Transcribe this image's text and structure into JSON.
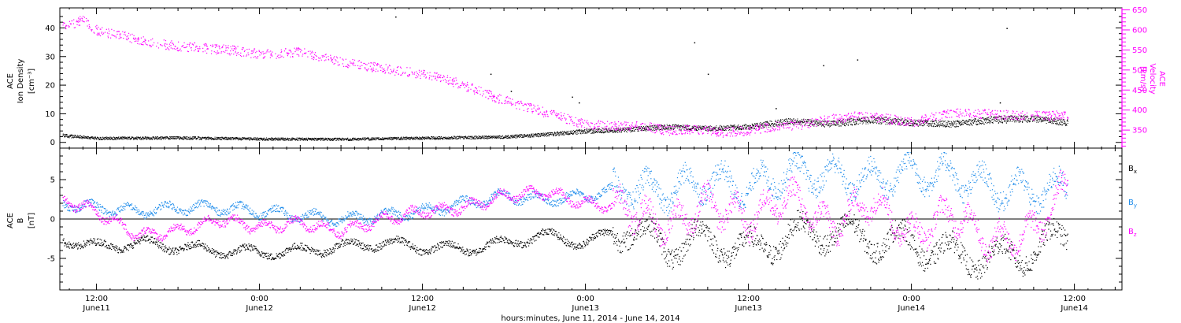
{
  "colors": {
    "density": "#000000",
    "velocity": "#ff00ff",
    "bx": "#000000",
    "by": "#1e8ceb",
    "bz": "#ff00ff",
    "axis": "#000000"
  },
  "top_panel": {
    "left_label": [
      "ACE",
      "Ion Density",
      "[cm⁻³]"
    ],
    "right_label": [
      "ACE",
      "Velocity",
      "[km/s]"
    ]
  },
  "bottom_panel": {
    "left_label": [
      "ACE",
      "B",
      "[nT]"
    ],
    "legend": [
      "Bx",
      "By",
      "Bz"
    ]
  },
  "x_axis": {
    "title": "hours:minutes, June 11, 2014 - June 14, 2014",
    "ticks": [
      {
        "time": "12:00",
        "day": "June11"
      },
      {
        "time": "0:00",
        "day": "June12"
      },
      {
        "time": "12:00",
        "day": "June12"
      },
      {
        "time": "0:00",
        "day": "June13"
      },
      {
        "time": "12:00",
        "day": "June13"
      },
      {
        "time": "0:00",
        "day": "June14"
      },
      {
        "time": "12:00",
        "day": "June14"
      }
    ]
  },
  "chart_data": [
    {
      "type": "scatter",
      "panel": "top",
      "x_unit": "hours since 2014-06-11 00:00",
      "xlim": [
        9.3,
        87.5
      ],
      "left_axis": {
        "label": "Ion Density [cm⁻³]",
        "ylim": [
          -2,
          47
        ],
        "ticks": [
          0,
          10,
          20,
          30,
          40
        ]
      },
      "right_axis": {
        "label": "Velocity [km/s]",
        "ylim": [
          305,
          655
        ],
        "ticks": [
          350,
          400,
          450,
          500,
          550,
          600,
          650
        ]
      },
      "series": [
        {
          "name": "Ion Density",
          "axis": "left",
          "x": [
            9.5,
            12,
            18,
            24,
            30,
            36,
            42,
            45,
            48,
            51,
            54,
            57,
            60,
            63,
            66,
            69,
            72,
            75,
            78,
            81,
            83.5
          ],
          "y": [
            2.5,
            1.5,
            1.7,
            1.3,
            1.2,
            1.6,
            2.0,
            2.8,
            4.0,
            4.5,
            5.5,
            5.0,
            5.5,
            7.5,
            6.5,
            8.0,
            7.0,
            6.5,
            8.0,
            8.5,
            7.0
          ]
        },
        {
          "name": "Velocity",
          "axis": "right",
          "x": [
            9.5,
            11,
            12,
            14,
            16,
            18,
            20,
            22,
            24,
            27,
            30,
            33,
            36,
            38,
            40,
            42,
            44,
            46,
            48,
            50,
            52,
            54,
            56,
            58,
            60,
            62,
            64,
            66,
            68,
            70,
            72,
            74,
            76,
            78,
            80,
            82,
            83.5
          ],
          "y": [
            610,
            625,
            600,
            585,
            570,
            560,
            555,
            550,
            540,
            545,
            520,
            505,
            490,
            475,
            450,
            425,
            405,
            385,
            365,
            360,
            362,
            350,
            352,
            345,
            350,
            360,
            365,
            378,
            385,
            380,
            370,
            388,
            395,
            390,
            388,
            385,
            390
          ]
        }
      ]
    },
    {
      "type": "scatter",
      "panel": "bottom",
      "x_unit": "hours since 2014-06-11 00:00",
      "xlim": [
        9.3,
        87.5
      ],
      "ylim": [
        -9,
        9
      ],
      "yticks": [
        -5,
        0,
        5
      ],
      "series": [
        {
          "name": "Bx",
          "x": [
            9.5,
            12,
            15,
            18,
            21,
            24,
            27,
            30,
            33,
            36,
            39,
            42,
            45,
            48,
            51,
            54,
            57,
            60,
            63,
            66,
            69,
            72,
            75,
            78,
            81,
            83.5
          ],
          "y": [
            -2.5,
            -3.5,
            -3.0,
            -3.5,
            -4.0,
            -4.2,
            -4.0,
            -3.5,
            -3.0,
            -3.5,
            -3.8,
            -3.0,
            -2.0,
            -3.0,
            -1.0,
            -3.5,
            -2.5,
            -4.0,
            -2.0,
            -1.5,
            -2.5,
            -3.0,
            -4.5,
            -5.0,
            -4.0,
            -2.0
          ]
        },
        {
          "name": "By",
          "x": [
            9.5,
            12,
            15,
            18,
            21,
            24,
            27,
            30,
            33,
            36,
            39,
            42,
            45,
            48,
            51,
            54,
            57,
            60,
            63,
            66,
            69,
            72,
            75,
            78,
            81,
            83.5
          ],
          "y": [
            2.0,
            1.5,
            1.0,
            1.5,
            1.5,
            1.0,
            0.5,
            0.0,
            0.5,
            1.0,
            2.0,
            3.0,
            2.5,
            3.0,
            4.0,
            3.5,
            5.0,
            4.0,
            6.0,
            5.5,
            5.0,
            6.0,
            5.5,
            4.0,
            3.5,
            4.0
          ]
        },
        {
          "name": "Bz",
          "x": [
            9.5,
            12,
            15,
            18,
            21,
            24,
            27,
            30,
            33,
            36,
            39,
            42,
            45,
            48,
            51,
            54,
            57,
            60,
            63,
            66,
            69,
            72,
            75,
            78,
            81,
            83.5
          ],
          "y": [
            2.5,
            1.0,
            -2.0,
            -1.5,
            0.0,
            -1.0,
            -0.5,
            -1.5,
            0.0,
            1.0,
            1.5,
            3.0,
            3.5,
            2.0,
            1.5,
            -1.0,
            2.0,
            0.0,
            3.0,
            -1.0,
            2.5,
            -2.0,
            1.0,
            -3.0,
            -1.5,
            4.5
          ]
        }
      ]
    }
  ]
}
